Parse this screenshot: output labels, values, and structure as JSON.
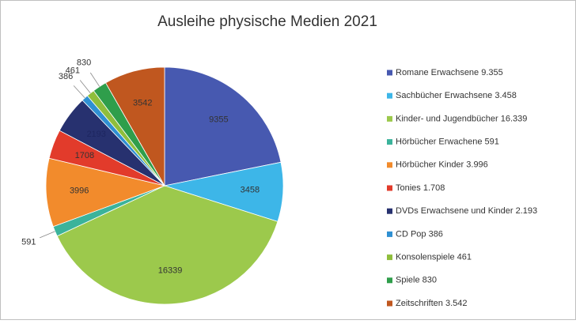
{
  "chart_data": {
    "type": "pie",
    "title": "Ausleihe physische Medien 2021",
    "categories": [
      "Romane Erwachsene 9.355",
      "Sachbücher Erwachsene 3.458",
      "Kinder- und Jugendbücher 16.339",
      "Hörbücher Erwachene 591",
      "Hörbücher Kinder 3.996",
      "Tonies 1.708",
      "DVDs Erwachsene und Kinder 2.193",
      "CD Pop 386",
      "Konsolenspiele 461",
      "Spiele 830",
      "Zeitschriften 3.542"
    ],
    "values": [
      9355,
      3458,
      16339,
      591,
      3996,
      1708,
      2193,
      386,
      461,
      830,
      3542
    ],
    "colors": [
      "#4759b0",
      "#3db6e8",
      "#9cc94c",
      "#3bb39b",
      "#f28b2c",
      "#e23b2b",
      "#27316f",
      "#2f90d2",
      "#8fbe3c",
      "#2f9e4b",
      "#c0571f"
    ],
    "legend": "right"
  }
}
